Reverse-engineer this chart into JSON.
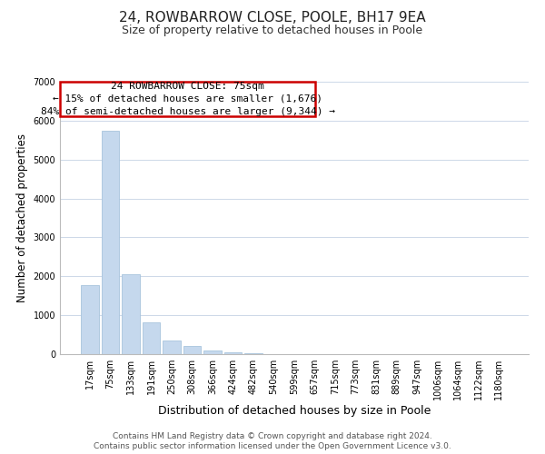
{
  "title": "24, ROWBARROW CLOSE, POOLE, BH17 9EA",
  "subtitle": "Size of property relative to detached houses in Poole",
  "xlabel": "Distribution of detached houses by size in Poole",
  "ylabel": "Number of detached properties",
  "bar_labels": [
    "17sqm",
    "75sqm",
    "133sqm",
    "191sqm",
    "250sqm",
    "308sqm",
    "366sqm",
    "424sqm",
    "482sqm",
    "540sqm",
    "599sqm",
    "657sqm",
    "715sqm",
    "773sqm",
    "831sqm",
    "889sqm",
    "947sqm",
    "1006sqm",
    "1064sqm",
    "1122sqm",
    "1180sqm"
  ],
  "bar_heights": [
    1780,
    5750,
    2050,
    820,
    360,
    220,
    100,
    55,
    30,
    10,
    5,
    2,
    1,
    0,
    0,
    0,
    0,
    0,
    0,
    0,
    0
  ],
  "bar_color": "#c5d8ed",
  "bar_edge_color": "#a8c4dd",
  "annotation_line1": "24 ROWBARROW CLOSE: 75sqm",
  "annotation_line2": "← 15% of detached houses are smaller (1,676)",
  "annotation_line3": "84% of semi-detached houses are larger (9,344) →",
  "ylim": [
    0,
    7000
  ],
  "yticks": [
    0,
    1000,
    2000,
    3000,
    4000,
    5000,
    6000,
    7000
  ],
  "footer_line1": "Contains HM Land Registry data © Crown copyright and database right 2024.",
  "footer_line2": "Contains public sector information licensed under the Open Government Licence v3.0.",
  "background_color": "#ffffff",
  "grid_color": "#cdd8e8",
  "title_fontsize": 11,
  "subtitle_fontsize": 9,
  "xlabel_fontsize": 9,
  "ylabel_fontsize": 8.5,
  "tick_fontsize": 7,
  "annotation_fontsize": 8,
  "footer_fontsize": 6.5
}
